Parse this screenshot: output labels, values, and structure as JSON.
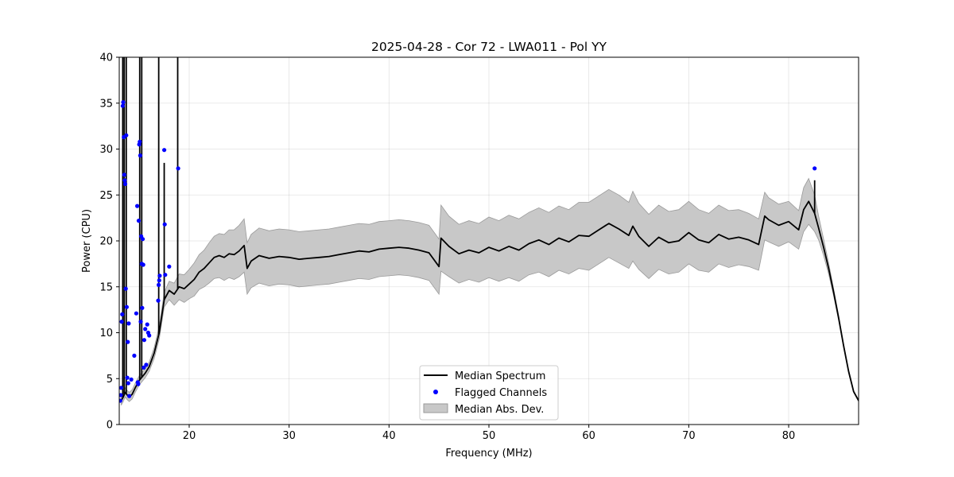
{
  "chart_data": {
    "type": "line",
    "title": "2025-04-28 - Cor 72 - LWA011 - Pol YY",
    "xlabel": "Frequency (MHz)",
    "ylabel": "Power (CPU)",
    "xlim": [
      13,
      87
    ],
    "ylim": [
      0,
      40
    ],
    "xticks": [
      20,
      30,
      40,
      50,
      60,
      70,
      80
    ],
    "yticks": [
      0,
      5,
      10,
      15,
      20,
      25,
      30,
      35,
      40
    ],
    "grid": true,
    "legend": {
      "placement": "lower-center",
      "entries": [
        "Median Spectrum",
        "Flagged Channels",
        "Median Abs. Dev."
      ]
    },
    "colors": {
      "median": "#000000",
      "flagged": "#0000ff",
      "mad_fill": "#c8c8c8",
      "mad_edge": "#9a9a9a"
    },
    "series": [
      {
        "name": "Median Spectrum",
        "x": [
          13.2,
          13.4,
          13.6,
          13.8,
          14.0,
          14.3,
          14.6,
          15.0,
          15.3,
          15.6,
          16.0,
          16.5,
          17.0,
          17.5,
          18.0,
          18.5,
          19.0,
          19.5,
          20.0,
          20.5,
          21.0,
          21.5,
          22.0,
          22.5,
          23.0,
          23.5,
          24.0,
          24.5,
          25.0,
          25.5,
          25.8,
          26.2,
          27.0,
          28.0,
          29.0,
          30.0,
          31.0,
          32.0,
          33.0,
          34.0,
          35.0,
          36.0,
          37.0,
          38.0,
          39.0,
          40.0,
          41.0,
          42.0,
          43.0,
          44.0,
          45.0,
          45.2,
          46.0,
          47.0,
          48.0,
          49.0,
          50.0,
          51.0,
          52.0,
          53.0,
          54.0,
          55.0,
          56.0,
          57.0,
          58.0,
          59.0,
          60.0,
          61.0,
          62.0,
          63.0,
          64.0,
          64.4,
          65.0,
          66.0,
          67.0,
          68.0,
          69.0,
          70.0,
          71.0,
          72.0,
          73.0,
          74.0,
          75.0,
          76.0,
          77.0,
          77.6,
          78.0,
          79.0,
          80.0,
          81.0,
          81.5,
          82.0,
          82.6,
          83.0,
          83.5,
          84.0,
          84.5,
          85.0,
          85.5,
          86.0,
          86.5,
          87.0
        ],
        "values": [
          2.6,
          3.0,
          3.5,
          3.2,
          3.0,
          3.3,
          4.0,
          4.8,
          5.2,
          5.6,
          6.3,
          7.8,
          10.0,
          13.6,
          14.6,
          14.2,
          15.0,
          14.8,
          15.3,
          15.8,
          16.6,
          17.0,
          17.6,
          18.2,
          18.4,
          18.2,
          18.6,
          18.5,
          18.9,
          19.5,
          17.0,
          17.8,
          18.4,
          18.1,
          18.3,
          18.2,
          18.0,
          18.1,
          18.2,
          18.3,
          18.5,
          18.7,
          18.9,
          18.8,
          19.1,
          19.2,
          19.3,
          19.2,
          19.0,
          18.7,
          17.2,
          20.3,
          19.4,
          18.6,
          19.0,
          18.7,
          19.3,
          18.9,
          19.4,
          19.0,
          19.7,
          20.1,
          19.6,
          20.3,
          19.9,
          20.6,
          20.5,
          21.2,
          21.9,
          21.3,
          20.6,
          21.6,
          20.5,
          19.4,
          20.4,
          19.8,
          20.0,
          20.9,
          20.1,
          19.8,
          20.7,
          20.2,
          20.4,
          20.1,
          19.6,
          22.7,
          22.3,
          21.7,
          22.1,
          21.2,
          23.4,
          24.3,
          23.0,
          21.4,
          19.3,
          17.0,
          14.4,
          11.6,
          8.6,
          5.8,
          3.6,
          2.6
        ],
        "mad": [
          0.5,
          0.5,
          0.5,
          0.5,
          0.5,
          0.5,
          0.5,
          0.5,
          0.5,
          0.5,
          0.5,
          0.6,
          0.7,
          0.8,
          1.0,
          1.2,
          1.4,
          1.5,
          1.6,
          1.8,
          1.9,
          2.0,
          2.2,
          2.3,
          2.4,
          2.5,
          2.6,
          2.7,
          2.8,
          2.9,
          2.8,
          2.9,
          3.0,
          3.0,
          3.0,
          3.0,
          3.0,
          3.0,
          3.0,
          3.0,
          3.0,
          3.0,
          3.0,
          3.0,
          3.0,
          3.0,
          3.0,
          3.0,
          3.0,
          3.0,
          3.0,
          3.6,
          3.3,
          3.2,
          3.2,
          3.2,
          3.3,
          3.3,
          3.4,
          3.4,
          3.4,
          3.5,
          3.5,
          3.5,
          3.5,
          3.6,
          3.7,
          3.7,
          3.7,
          3.7,
          3.6,
          3.8,
          3.6,
          3.5,
          3.5,
          3.4,
          3.4,
          3.4,
          3.3,
          3.2,
          3.2,
          3.1,
          3.0,
          2.9,
          2.8,
          2.6,
          2.4,
          2.3,
          2.2,
          2.1,
          2.4,
          2.5,
          2.0,
          1.3,
          0.9,
          0.6,
          0.4,
          0.3,
          0.2,
          0.2,
          0.1,
          0.1
        ],
        "spikes": [
          {
            "x": 13.35,
            "y": 40
          },
          {
            "x": 13.5,
            "y": 40
          },
          {
            "x": 13.7,
            "y": 40
          },
          {
            "x": 15.05,
            "y": 40
          },
          {
            "x": 15.25,
            "y": 40
          },
          {
            "x": 16.95,
            "y": 40
          },
          {
            "x": 17.5,
            "y": 28.5
          },
          {
            "x": 18.85,
            "y": 40
          },
          {
            "x": 82.6,
            "y": 26.6
          }
        ]
      },
      {
        "name": "Flagged Channels",
        "points": [
          [
            13.1,
            2.6
          ],
          [
            13.15,
            3.2
          ],
          [
            13.2,
            4.0
          ],
          [
            13.25,
            11.2
          ],
          [
            13.3,
            12.0
          ],
          [
            13.35,
            34.7
          ],
          [
            13.4,
            35.1
          ],
          [
            13.45,
            31.3
          ],
          [
            13.5,
            27.2
          ],
          [
            13.55,
            26.6
          ],
          [
            13.6,
            26.2
          ],
          [
            13.65,
            14.8
          ],
          [
            13.7,
            31.5
          ],
          [
            13.75,
            12.8
          ],
          [
            13.8,
            5.1
          ],
          [
            13.85,
            9.0
          ],
          [
            13.9,
            4.5
          ],
          [
            13.95,
            11.0
          ],
          [
            14.0,
            3.1
          ],
          [
            14.2,
            4.9
          ],
          [
            14.5,
            7.5
          ],
          [
            14.7,
            12.1
          ],
          [
            14.8,
            23.8
          ],
          [
            14.85,
            4.6
          ],
          [
            14.9,
            4.4
          ],
          [
            14.95,
            22.2
          ],
          [
            15.0,
            30.5
          ],
          [
            15.05,
            30.8
          ],
          [
            15.1,
            29.3
          ],
          [
            15.15,
            11.2
          ],
          [
            15.2,
            20.5
          ],
          [
            15.25,
            17.5
          ],
          [
            15.3,
            12.7
          ],
          [
            15.35,
            20.2
          ],
          [
            15.4,
            17.4
          ],
          [
            15.45,
            6.2
          ],
          [
            15.5,
            9.2
          ],
          [
            15.6,
            10.4
          ],
          [
            15.7,
            6.5
          ],
          [
            15.8,
            10.9
          ],
          [
            15.9,
            10.0
          ],
          [
            16.0,
            9.7
          ],
          [
            16.9,
            13.5
          ],
          [
            16.95,
            15.2
          ],
          [
            17.0,
            15.7
          ],
          [
            17.05,
            16.2
          ],
          [
            17.5,
            29.9
          ],
          [
            17.55,
            21.8
          ],
          [
            17.6,
            16.3
          ],
          [
            18.0,
            17.2
          ],
          [
            18.9,
            27.9
          ],
          [
            82.6,
            27.9
          ]
        ]
      }
    ]
  }
}
